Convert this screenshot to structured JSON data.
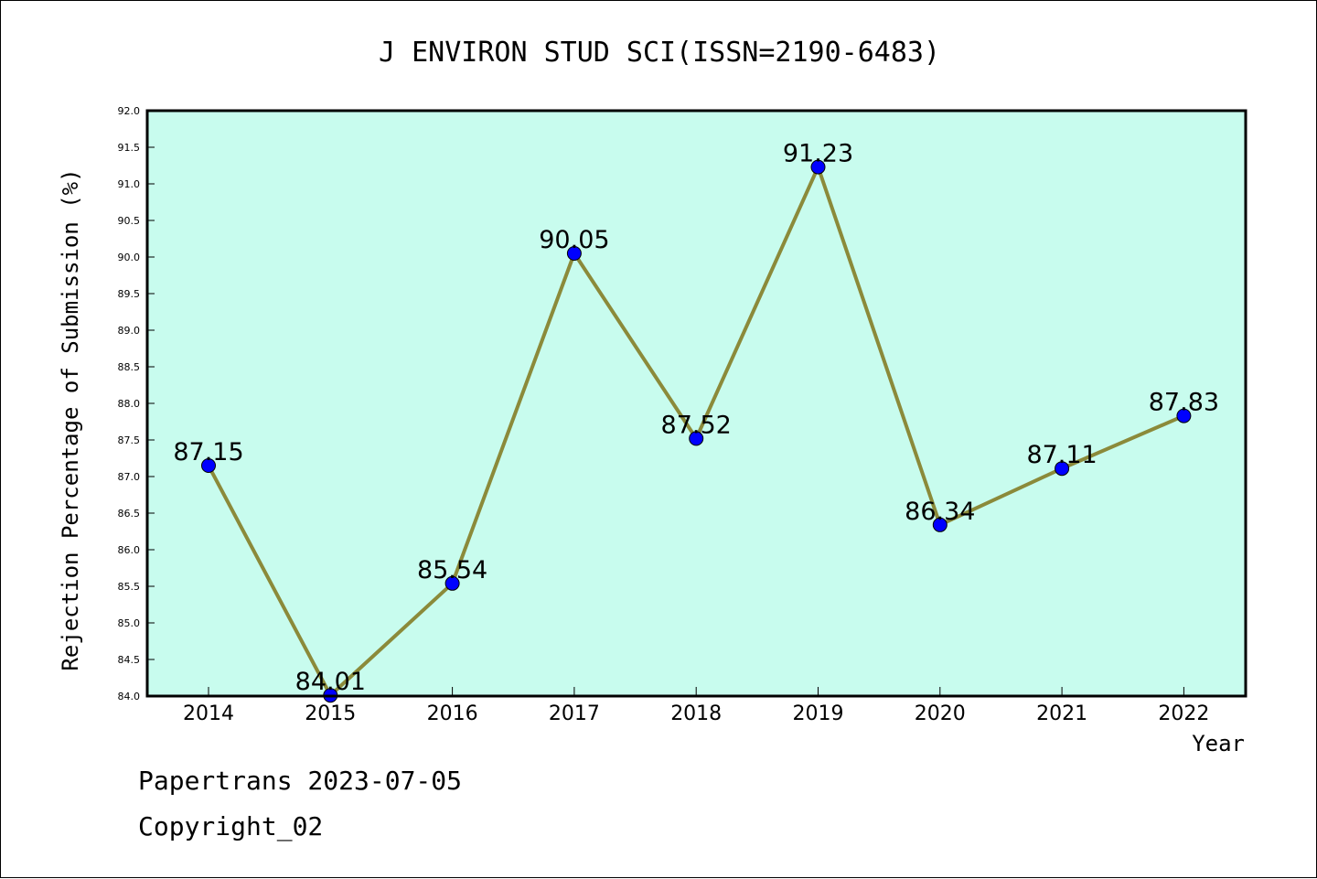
{
  "chart_data": {
    "type": "line",
    "title": "J ENVIRON STUD SCI(ISSN=2190-6483)",
    "xlabel": "Year",
    "ylabel": "Rejection Percentage of Submission (%)",
    "categories": [
      "2014",
      "2015",
      "2016",
      "2017",
      "2018",
      "2019",
      "2020",
      "2021",
      "2022"
    ],
    "series": [
      {
        "values": [
          87.15,
          84.01,
          85.54,
          90.05,
          87.52,
          91.23,
          86.34,
          87.11,
          87.83
        ],
        "data_labels": [
          "87.15",
          "84.01",
          "85.54",
          "90.05",
          "87.52",
          "91.23",
          "86.34",
          "87.11",
          "87.83"
        ],
        "line_color": "#8b8a3a",
        "marker_color": "#0000ff"
      }
    ],
    "ylim": [
      84.0,
      92.0
    ],
    "yticks": [
      "84.0",
      "84.5",
      "85.0",
      "85.5",
      "86.0",
      "86.5",
      "87.0",
      "87.5",
      "88.0",
      "88.5",
      "89.0",
      "89.5",
      "90.0",
      "90.5",
      "91.0",
      "91.5",
      "92.0"
    ],
    "plot_background": "#c8fcee",
    "grid": false,
    "legend": "none"
  },
  "footer": {
    "line1": "Papertrans 2023-07-05",
    "line2": "Copyright_02"
  }
}
